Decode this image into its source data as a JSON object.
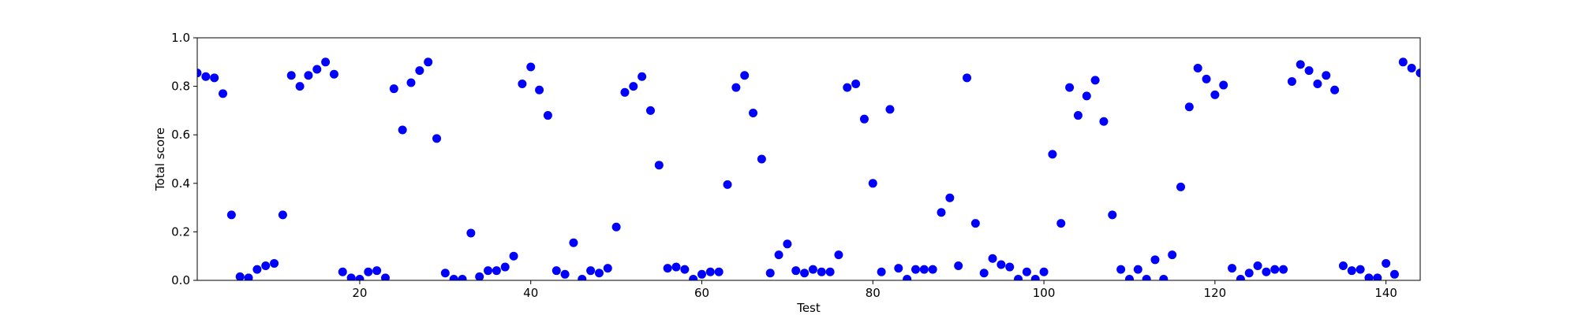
{
  "chart_data": {
    "type": "scatter",
    "title": "",
    "xlabel": "Test",
    "ylabel": "Total score",
    "xlim": [
      1,
      144
    ],
    "ylim": [
      0.0,
      1.0
    ],
    "grid": false,
    "marker_color": "#0000ff",
    "x_ticks": [
      20,
      40,
      60,
      80,
      100,
      120,
      140
    ],
    "x_tick_labels": [
      "20",
      "40",
      "60",
      "80",
      "100",
      "120",
      "140"
    ],
    "y_ticks": [
      0.0,
      0.2,
      0.4,
      0.6,
      0.8,
      1.0
    ],
    "y_tick_labels": [
      "0.0",
      "0.2",
      "0.4",
      "0.6",
      "0.8",
      "1.0"
    ],
    "series": [
      {
        "x": [
          1,
          2,
          3,
          4,
          5,
          6,
          7,
          8,
          9,
          10,
          11,
          12,
          13,
          14,
          15,
          16,
          17,
          18,
          19,
          20,
          21,
          22,
          23,
          24,
          25,
          26,
          27,
          28,
          29,
          30,
          31,
          32,
          33,
          34,
          35,
          36,
          37,
          38,
          39,
          40,
          41,
          42,
          43,
          44,
          45,
          46,
          47,
          48,
          49,
          50,
          51,
          52,
          53,
          54,
          55,
          56,
          57,
          58,
          59,
          60,
          61,
          62,
          63,
          64,
          65,
          66,
          67,
          68,
          69,
          70,
          71,
          72,
          73,
          74,
          75,
          76,
          77,
          78,
          79,
          80,
          81,
          82,
          83,
          84,
          85,
          86,
          87,
          88,
          89,
          90,
          91,
          92,
          93,
          94,
          95,
          96,
          97,
          98,
          99,
          100,
          101,
          102,
          103,
          104,
          105,
          106,
          107,
          108,
          109,
          110,
          111,
          112,
          113,
          114,
          115,
          116,
          117,
          118,
          119,
          120,
          121,
          122,
          123,
          124,
          125,
          126,
          127,
          128,
          129,
          130,
          131,
          132,
          133,
          134,
          135,
          136,
          137,
          138,
          139,
          140,
          141,
          142,
          143,
          144
        ],
        "y": [
          0.855,
          0.84,
          0.835,
          0.77,
          0.27,
          0.015,
          0.01,
          0.045,
          0.06,
          0.07,
          0.27,
          0.845,
          0.8,
          0.845,
          0.87,
          0.9,
          0.85,
          0.035,
          0.01,
          0.005,
          0.035,
          0.04,
          0.01,
          0.79,
          0.62,
          0.815,
          0.865,
          0.9,
          0.585,
          0.03,
          0.005,
          0.005,
          0.195,
          0.015,
          0.04,
          0.04,
          0.055,
          0.1,
          0.81,
          0.88,
          0.785,
          0.68,
          0.04,
          0.025,
          0.155,
          0.005,
          0.04,
          0.03,
          0.05,
          0.22,
          0.775,
          0.8,
          0.84,
          0.7,
          0.475,
          0.05,
          0.055,
          0.045,
          0.005,
          0.025,
          0.035,
          0.035,
          0.395,
          0.795,
          0.845,
          0.69,
          0.5,
          0.03,
          0.105,
          0.15,
          0.04,
          0.03,
          0.045,
          0.035,
          0.035,
          0.105,
          0.795,
          0.81,
          0.665,
          0.4,
          0.035,
          0.705,
          0.05,
          0.005,
          0.045,
          0.045,
          0.045,
          0.28,
          0.34,
          0.06,
          0.835,
          0.235,
          0.03,
          0.09,
          0.065,
          0.055,
          0.005,
          0.035,
          0.005,
          0.035,
          0.52,
          0.235,
          0.795,
          0.68,
          0.76,
          0.825,
          0.655,
          0.27,
          0.045,
          0.005,
          0.045,
          0.005,
          0.085,
          0.005,
          0.105,
          0.385,
          0.715,
          0.875,
          0.83,
          0.765,
          0.805,
          0.05,
          0.005,
          0.03,
          0.06,
          0.035,
          0.045,
          0.045,
          0.82,
          0.89,
          0.865,
          0.81,
          0.845,
          0.785,
          0.06,
          0.04,
          0.045,
          0.01,
          0.01,
          0.07,
          0.025,
          0.9,
          0.875,
          0.855
        ]
      }
    ]
  }
}
